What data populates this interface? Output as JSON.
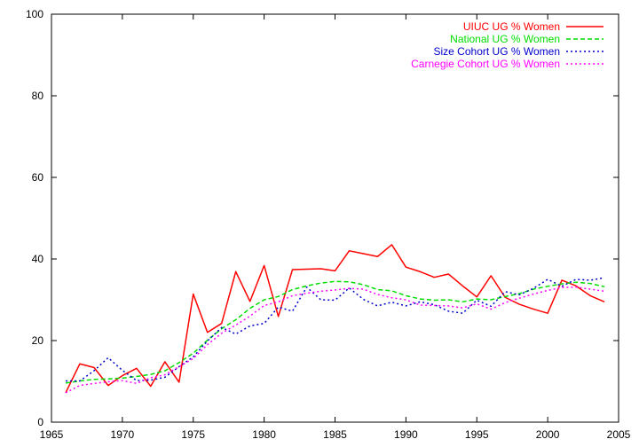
{
  "chart_data": {
    "type": "line",
    "title": "",
    "xlabel": "",
    "ylabel": "",
    "xlim": [
      1965,
      2005
    ],
    "ylim": [
      0,
      100
    ],
    "x_ticks": [
      1965,
      1970,
      1975,
      1980,
      1985,
      1990,
      1995,
      2000,
      2005
    ],
    "y_ticks": [
      0,
      20,
      40,
      60,
      80,
      100
    ],
    "grid": false,
    "legend_position": "top-right",
    "x": [
      1966,
      1967,
      1968,
      1969,
      1970,
      1971,
      1972,
      1973,
      1974,
      1975,
      1976,
      1977,
      1978,
      1979,
      1980,
      1981,
      1982,
      1983,
      1984,
      1985,
      1986,
      1987,
      1988,
      1989,
      1990,
      1991,
      1992,
      1993,
      1994,
      1995,
      1996,
      1997,
      1998,
      1999,
      2000,
      2001,
      2002,
      2003,
      2004
    ],
    "series": [
      {
        "name": "UIUC UG % Women",
        "color": "#ff0000",
        "dash": "solid",
        "values": [
          7.2,
          14.3,
          13.4,
          9.0,
          11.4,
          13.2,
          8.8,
          14.8,
          9.8,
          31.4,
          22.0,
          24.2,
          36.9,
          29.6,
          38.4,
          25.9,
          37.4,
          37.5,
          37.6,
          37.1,
          42.0,
          41.3,
          40.6,
          43.5,
          38.0,
          36.9,
          35.5,
          36.3,
          33.4,
          30.7,
          35.9,
          30.6,
          28.9,
          27.7,
          26.7,
          34.8,
          33.4,
          31.0,
          29.5
        ]
      },
      {
        "name": "National UG % Women",
        "color": "#00dd00",
        "dash": "dashed",
        "values": [
          9.6,
          10.1,
          10.5,
          10.6,
          10.8,
          11.2,
          11.7,
          12.6,
          14.6,
          16.9,
          20.1,
          22.9,
          25.1,
          27.9,
          30.0,
          30.8,
          32.5,
          33.4,
          34.1,
          34.5,
          34.4,
          33.7,
          32.5,
          32.2,
          31.0,
          30.2,
          29.9,
          30.0,
          29.5,
          30.2,
          30.0,
          30.8,
          31.5,
          32.6,
          33.3,
          33.9,
          34.3,
          34.0,
          33.2
        ]
      },
      {
        "name": "Size Cohort UG % Women",
        "color": "#0000cc",
        "dash": "dotted",
        "values": [
          10.1,
          10.1,
          12.6,
          15.8,
          12.7,
          10.2,
          10.3,
          11.0,
          13.6,
          16.0,
          19.9,
          23.2,
          21.6,
          23.6,
          24.2,
          28.2,
          27.2,
          33.1,
          30.0,
          29.9,
          32.9,
          30.1,
          28.5,
          29.4,
          28.5,
          29.5,
          28.8,
          27.2,
          26.7,
          29.9,
          28.4,
          32.0,
          31.2,
          32.8,
          35.0,
          33.3,
          35.0,
          34.8,
          35.4
        ]
      },
      {
        "name": "Carnegie Cohort UG % Women",
        "color": "#ff00ff",
        "dash": "dotted",
        "values": [
          7.2,
          9.0,
          9.5,
          9.9,
          10.2,
          9.5,
          10.9,
          11.6,
          13.6,
          15.6,
          19.0,
          21.8,
          23.8,
          26.0,
          28.6,
          29.5,
          31.0,
          31.6,
          32.1,
          32.4,
          32.8,
          32.6,
          31.3,
          30.5,
          30.0,
          28.7,
          28.6,
          28.5,
          28.0,
          29.0,
          27.7,
          29.3,
          30.4,
          31.4,
          32.3,
          33.0,
          33.1,
          32.6,
          32.1
        ]
      }
    ]
  }
}
